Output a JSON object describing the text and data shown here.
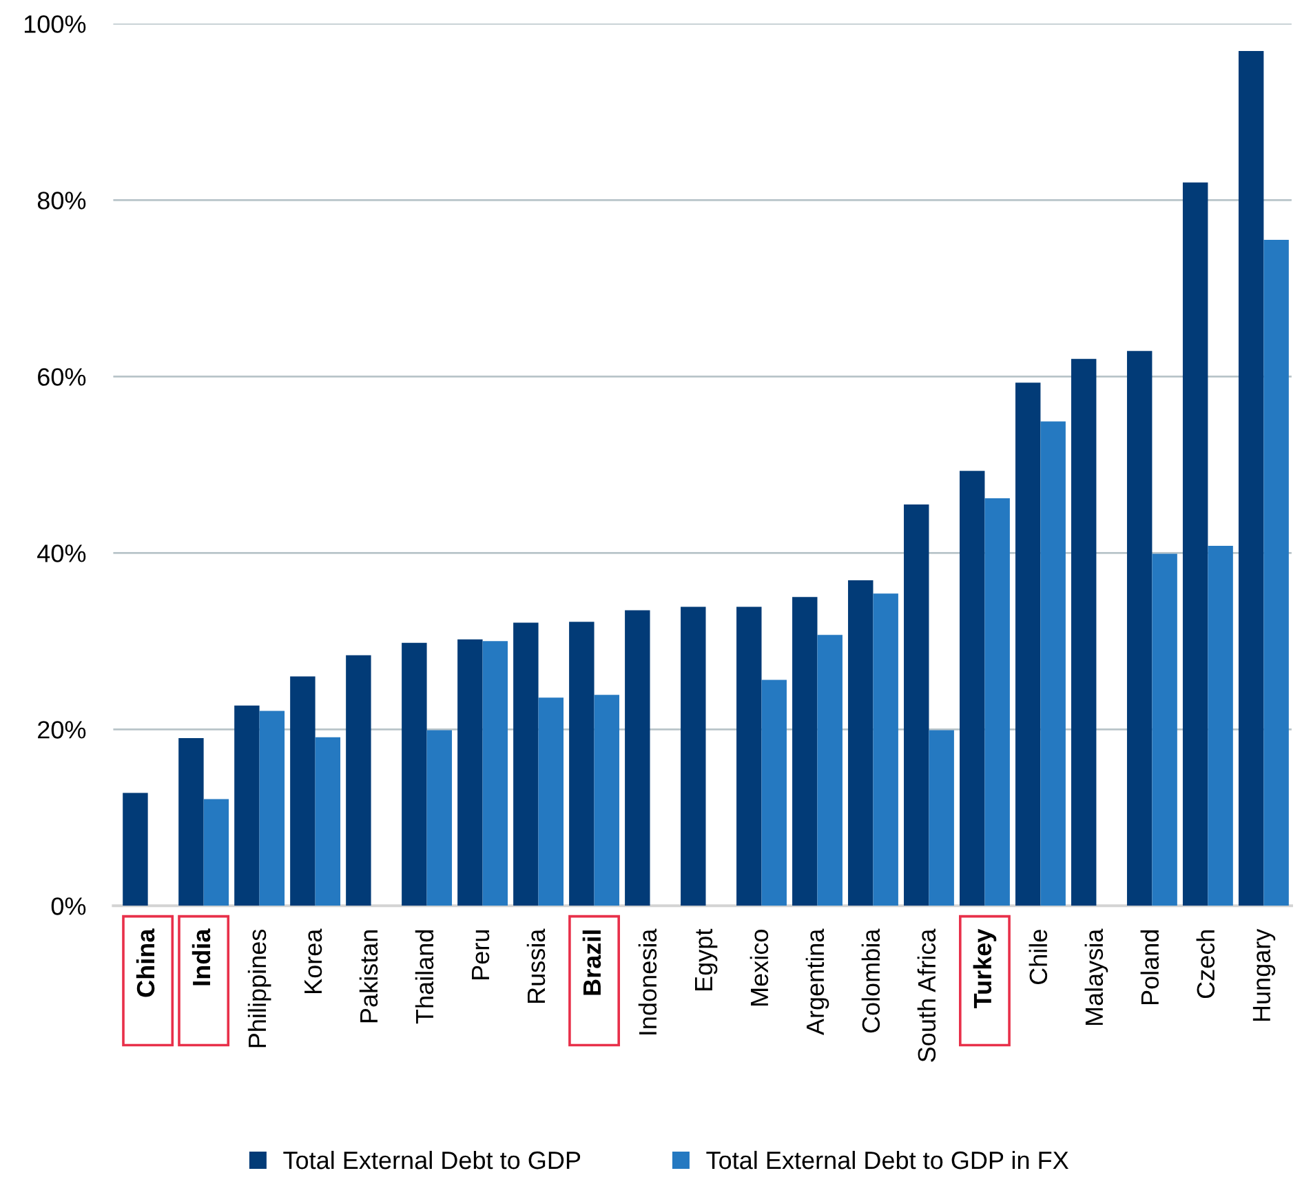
{
  "chart_data": {
    "type": "bar",
    "categories": [
      "China",
      "India",
      "Philippines",
      "Korea",
      "Pakistan",
      "Thailand",
      "Peru",
      "Russia",
      "Brazil",
      "Indonesia",
      "Egypt",
      "Mexico",
      "Argentina",
      "Colombia",
      "South Africa",
      "Turkey",
      "Chile",
      "Malaysia",
      "Poland",
      "Czech",
      "Hungary"
    ],
    "series": [
      {
        "name": "Total External Debt to GDP",
        "color": "#023b77",
        "values": [
          12.8,
          19.0,
          22.7,
          26.0,
          28.4,
          29.8,
          30.2,
          32.1,
          32.2,
          33.5,
          33.9,
          33.9,
          35.0,
          36.9,
          45.5,
          49.3,
          59.3,
          62.0,
          62.9,
          82.0,
          96.9
        ]
      },
      {
        "name": "Total External Debt to GDP in FX",
        "color": "#2579c1",
        "values": [
          null,
          12.1,
          22.1,
          19.1,
          null,
          19.9,
          30.0,
          23.6,
          23.9,
          null,
          null,
          25.6,
          30.7,
          35.4,
          19.9,
          46.2,
          54.9,
          null,
          39.9,
          40.8,
          75.5
        ]
      }
    ],
    "ylim": [
      0,
      100
    ],
    "yticks": [
      {
        "value": 0,
        "label": "0%"
      },
      {
        "value": 20,
        "label": "20%"
      },
      {
        "value": 40,
        "label": "40%"
      },
      {
        "value": 60,
        "label": "60%"
      },
      {
        "value": 80,
        "label": "80%"
      },
      {
        "value": 100,
        "label": "100%"
      }
    ],
    "grid": "y",
    "legend": "bottom"
  }
}
